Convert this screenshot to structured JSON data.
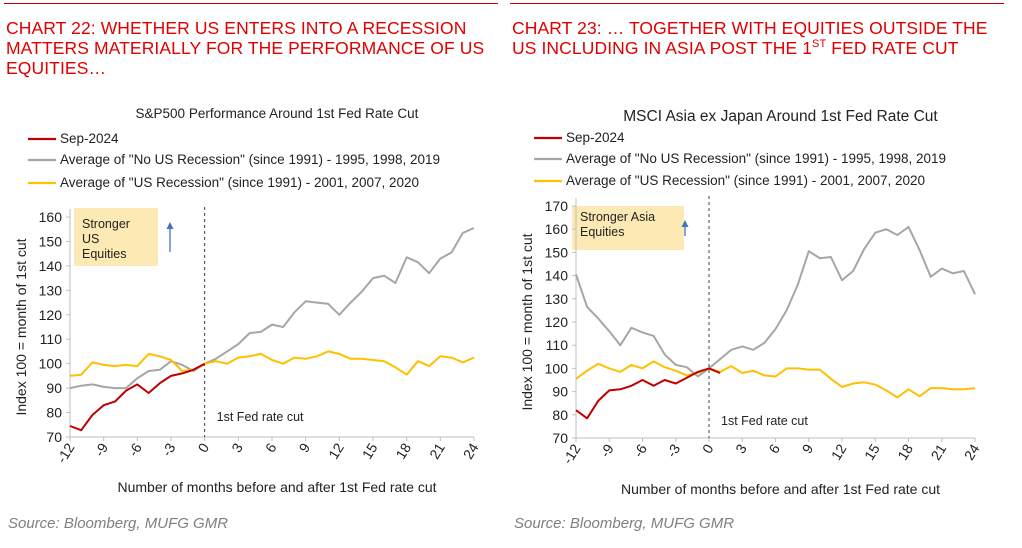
{
  "charts": [
    {
      "chart_number": "CHART 22:",
      "heading_parts": [
        {
          "text": "CHART 22: WHETHER US ENTERS INTO A RECESSION MATTERS MATERIALLY FOR THE PERFORMANCE OF US EQUITIES…",
          "sup": false
        }
      ],
      "source": "Source: Bloomberg, MUFG GMR",
      "chart_data": {
        "type": "line",
        "title": "S&P500 Performance Around 1st Fed Rate Cut",
        "xlabel": "Number of months before and after 1st Fed rate cut",
        "ylabel": "Index 100 = month of 1st cut",
        "xlim": [
          -12,
          24
        ],
        "ylim": [
          70,
          160
        ],
        "xticks": [
          "-12",
          "-9",
          "-6",
          "-3",
          "0",
          "3",
          "6",
          "9",
          "12",
          "15",
          "18",
          "21",
          "24"
        ],
        "yticks": [
          "70",
          "80",
          "90",
          "100",
          "110",
          "120",
          "130",
          "140",
          "150",
          "160"
        ],
        "grid": false,
        "legend_position": "top-left",
        "annotation_box": {
          "text_lines": [
            "Stronger",
            "US",
            "Equities"
          ],
          "fill": "#fde9b4",
          "arrow_color": "#4472c4"
        },
        "cut_marker": {
          "x": 0,
          "label": "1st Fed rate cut"
        },
        "series": [
          {
            "name": "Sep-2024",
            "color": "#c00000",
            "x": [
              -12,
              -11,
              -10,
              -9,
              -8,
              -7,
              -6,
              -5,
              -4,
              -3,
              -2,
              -1,
              0
            ],
            "y": [
              74.5,
              72.8,
              79,
              83,
              84.5,
              89,
              91.5,
              88,
              92,
              95,
              96,
              97.5,
              100
            ]
          },
          {
            "name": "Average of \"No US Recession\" (since 1991) - 1995, 1998, 2019",
            "color": "#a6a6a6",
            "x": [
              -12,
              -11,
              -10,
              -9,
              -8,
              -7,
              -6,
              -5,
              -4,
              -3,
              -2,
              -1,
              0,
              1,
              2,
              3,
              4,
              5,
              6,
              7,
              8,
              9,
              10,
              11,
              12,
              13,
              14,
              15,
              16,
              17,
              18,
              19,
              20,
              21,
              22,
              23,
              24
            ],
            "y": [
              90,
              91,
              91.5,
              90.5,
              90,
              90,
              94,
              97,
              97.5,
              101,
              99.5,
              97,
              100,
              102,
              105,
              108,
              112.5,
              113,
              116,
              115,
              121,
              125.5,
              125,
              124.5,
              120,
              125,
              129.5,
              135,
              136,
              133,
              143.5,
              141.5,
              137,
              143,
              145.5,
              153.5,
              155.5
            ]
          },
          {
            "name": "Average of \"US Recession\" (since 1991) - 2001, 2007, 2020",
            "color": "#ffc000",
            "x": [
              -12,
              -11,
              -10,
              -9,
              -8,
              -7,
              -6,
              -5,
              -4,
              -3,
              -2,
              -1,
              0,
              1,
              2,
              3,
              4,
              5,
              6,
              7,
              8,
              9,
              10,
              11,
              12,
              13,
              14,
              15,
              16,
              17,
              18,
              19,
              20,
              21,
              22,
              23,
              24
            ],
            "y": [
              95,
              95.5,
              100.5,
              99.5,
              99,
              99.5,
              99,
              104,
              103,
              101.5,
              97,
              97.5,
              100,
              101,
              100,
              102.5,
              103,
              104,
              101.5,
              100,
              102.5,
              102,
              103,
              105,
              104,
              102,
              102,
              101.5,
              101,
              98.5,
              95.5,
              101,
              99,
              103,
              102.5,
              100.5,
              102.5
            ]
          }
        ]
      }
    },
    {
      "chart_number": "CHART 23:",
      "heading_parts": [
        {
          "text": "CHART 23: … TOGETHER WITH EQUITIES OUTSIDE THE US INCLUDING IN ASIA POST THE 1",
          "sup": false
        },
        {
          "text": "ST",
          "sup": true
        },
        {
          "text": " FED RATE CUT",
          "sup": false
        }
      ],
      "source": "Source: Bloomberg, MUFG GMR",
      "chart_data": {
        "type": "line",
        "title": "MSCI Asia ex Japan Around 1st Fed Rate Cut",
        "xlabel": "Number of months before and after 1st Fed rate cut",
        "ylabel": "Index 100 = month of 1st cut",
        "xlim": [
          -12,
          24
        ],
        "ylim": [
          70,
          170
        ],
        "xticks": [
          "-12",
          "-9",
          "-6",
          "-3",
          "0",
          "3",
          "6",
          "9",
          "12",
          "15",
          "18",
          "21",
          "24"
        ],
        "yticks": [
          "70",
          "80",
          "90",
          "100",
          "110",
          "120",
          "130",
          "140",
          "150",
          "160",
          "170"
        ],
        "grid": false,
        "legend_position": "top-left",
        "annotation_box": {
          "text_lines": [
            "Stronger Asia",
            "Equities"
          ],
          "fill": "#fde9b4",
          "arrow_color": "#4472c4"
        },
        "cut_marker": {
          "x": 0,
          "label": "1st Fed rate cut"
        },
        "series": [
          {
            "name": "Sep-2024",
            "color": "#c00000",
            "x": [
              -12,
              -11,
              -10,
              -9,
              -8,
              -7,
              -6,
              -5,
              -4,
              -3,
              -2,
              -1,
              0,
              1
            ],
            "y": [
              82,
              78.5,
              86,
              90.5,
              91,
              92.5,
              95,
              92.5,
              95,
              93.5,
              96,
              98.5,
              100,
              98
            ]
          },
          {
            "name": "Average of \"No US Recession\" (since 1991) - 1995, 1998, 2019",
            "color": "#a6a6a6",
            "x": [
              -12,
              -11,
              -10,
              -9,
              -8,
              -7,
              -6,
              -5,
              -4,
              -3,
              -2,
              -1,
              0,
              1,
              2,
              3,
              4,
              5,
              6,
              7,
              8,
              9,
              10,
              11,
              12,
              13,
              14,
              15,
              16,
              17,
              18,
              19,
              20,
              21,
              22,
              23,
              24
            ],
            "y": [
              140.5,
              126.5,
              121.5,
              116,
              110,
              117.5,
              115.5,
              114,
              106,
              101.5,
              100.5,
              96.5,
              100,
              104,
              108,
              109.5,
              108,
              111,
              117,
              125,
              136,
              150.5,
              147.5,
              148,
              138,
              142,
              151.5,
              158.5,
              160,
              157.5,
              161,
              151,
              139.5,
              143,
              141,
              142,
              132
            ]
          },
          {
            "name": "Average of \"US Recession\" (since 1991) - 2001, 2007, 2020",
            "color": "#ffc000",
            "x": [
              -12,
              -11,
              -10,
              -9,
              -8,
              -7,
              -6,
              -5,
              -4,
              -3,
              -2,
              -1,
              0,
              1,
              2,
              3,
              4,
              5,
              6,
              7,
              8,
              9,
              10,
              11,
              12,
              13,
              14,
              15,
              16,
              17,
              18,
              19,
              20,
              21,
              22,
              23,
              24
            ],
            "y": [
              95.5,
              99,
              102,
              100,
              98.5,
              101.5,
              100,
              103,
              100.5,
              99,
              97,
              98,
              100,
              98.5,
              101,
              98,
              99,
              97,
              96.5,
              100,
              100,
              99.5,
              99.5,
              95.5,
              92,
              93.5,
              94,
              93,
              90.5,
              87.5,
              91,
              88,
              91.5,
              91.5,
              91,
              91,
              91.5
            ]
          }
        ]
      }
    }
  ]
}
